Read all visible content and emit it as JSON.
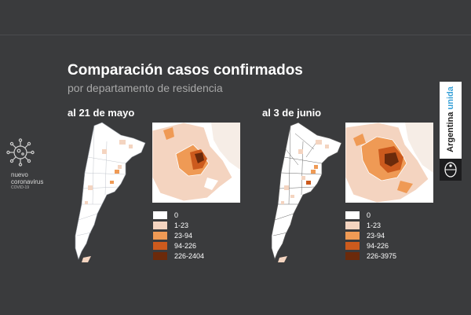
{
  "title": "Comparación casos confirmados",
  "subtitle": "por departamento de residencia",
  "brand": {
    "line1": "nuevo",
    "line2": "coronavirus",
    "line3": "COVID-19",
    "logo_icon": "virus-icon"
  },
  "government_badge": {
    "text_main": "Argentina",
    "text_accent": "unida",
    "accent_color": "#3aa2d8",
    "shield_icon": "national-shield-icon"
  },
  "panels": [
    {
      "label": "al 21 de mayo",
      "legend": [
        {
          "label": "0",
          "color": "#ffffff"
        },
        {
          "label": "1-23",
          "color": "#f4d4c0"
        },
        {
          "label": "23-94",
          "color": "#ef9a55"
        },
        {
          "label": "94-226",
          "color": "#cc5a1d"
        },
        {
          "label": "226-2404",
          "color": "#6b2a0b"
        }
      ]
    },
    {
      "label": "al 3 de junio",
      "legend": [
        {
          "label": "0",
          "color": "#ffffff"
        },
        {
          "label": "1-23",
          "color": "#f4d4c0"
        },
        {
          "label": "23-94",
          "color": "#ef9a55"
        },
        {
          "label": "94-226",
          "color": "#cc5a1d"
        },
        {
          "label": "226-3975",
          "color": "#6b2a0b"
        }
      ]
    }
  ]
}
